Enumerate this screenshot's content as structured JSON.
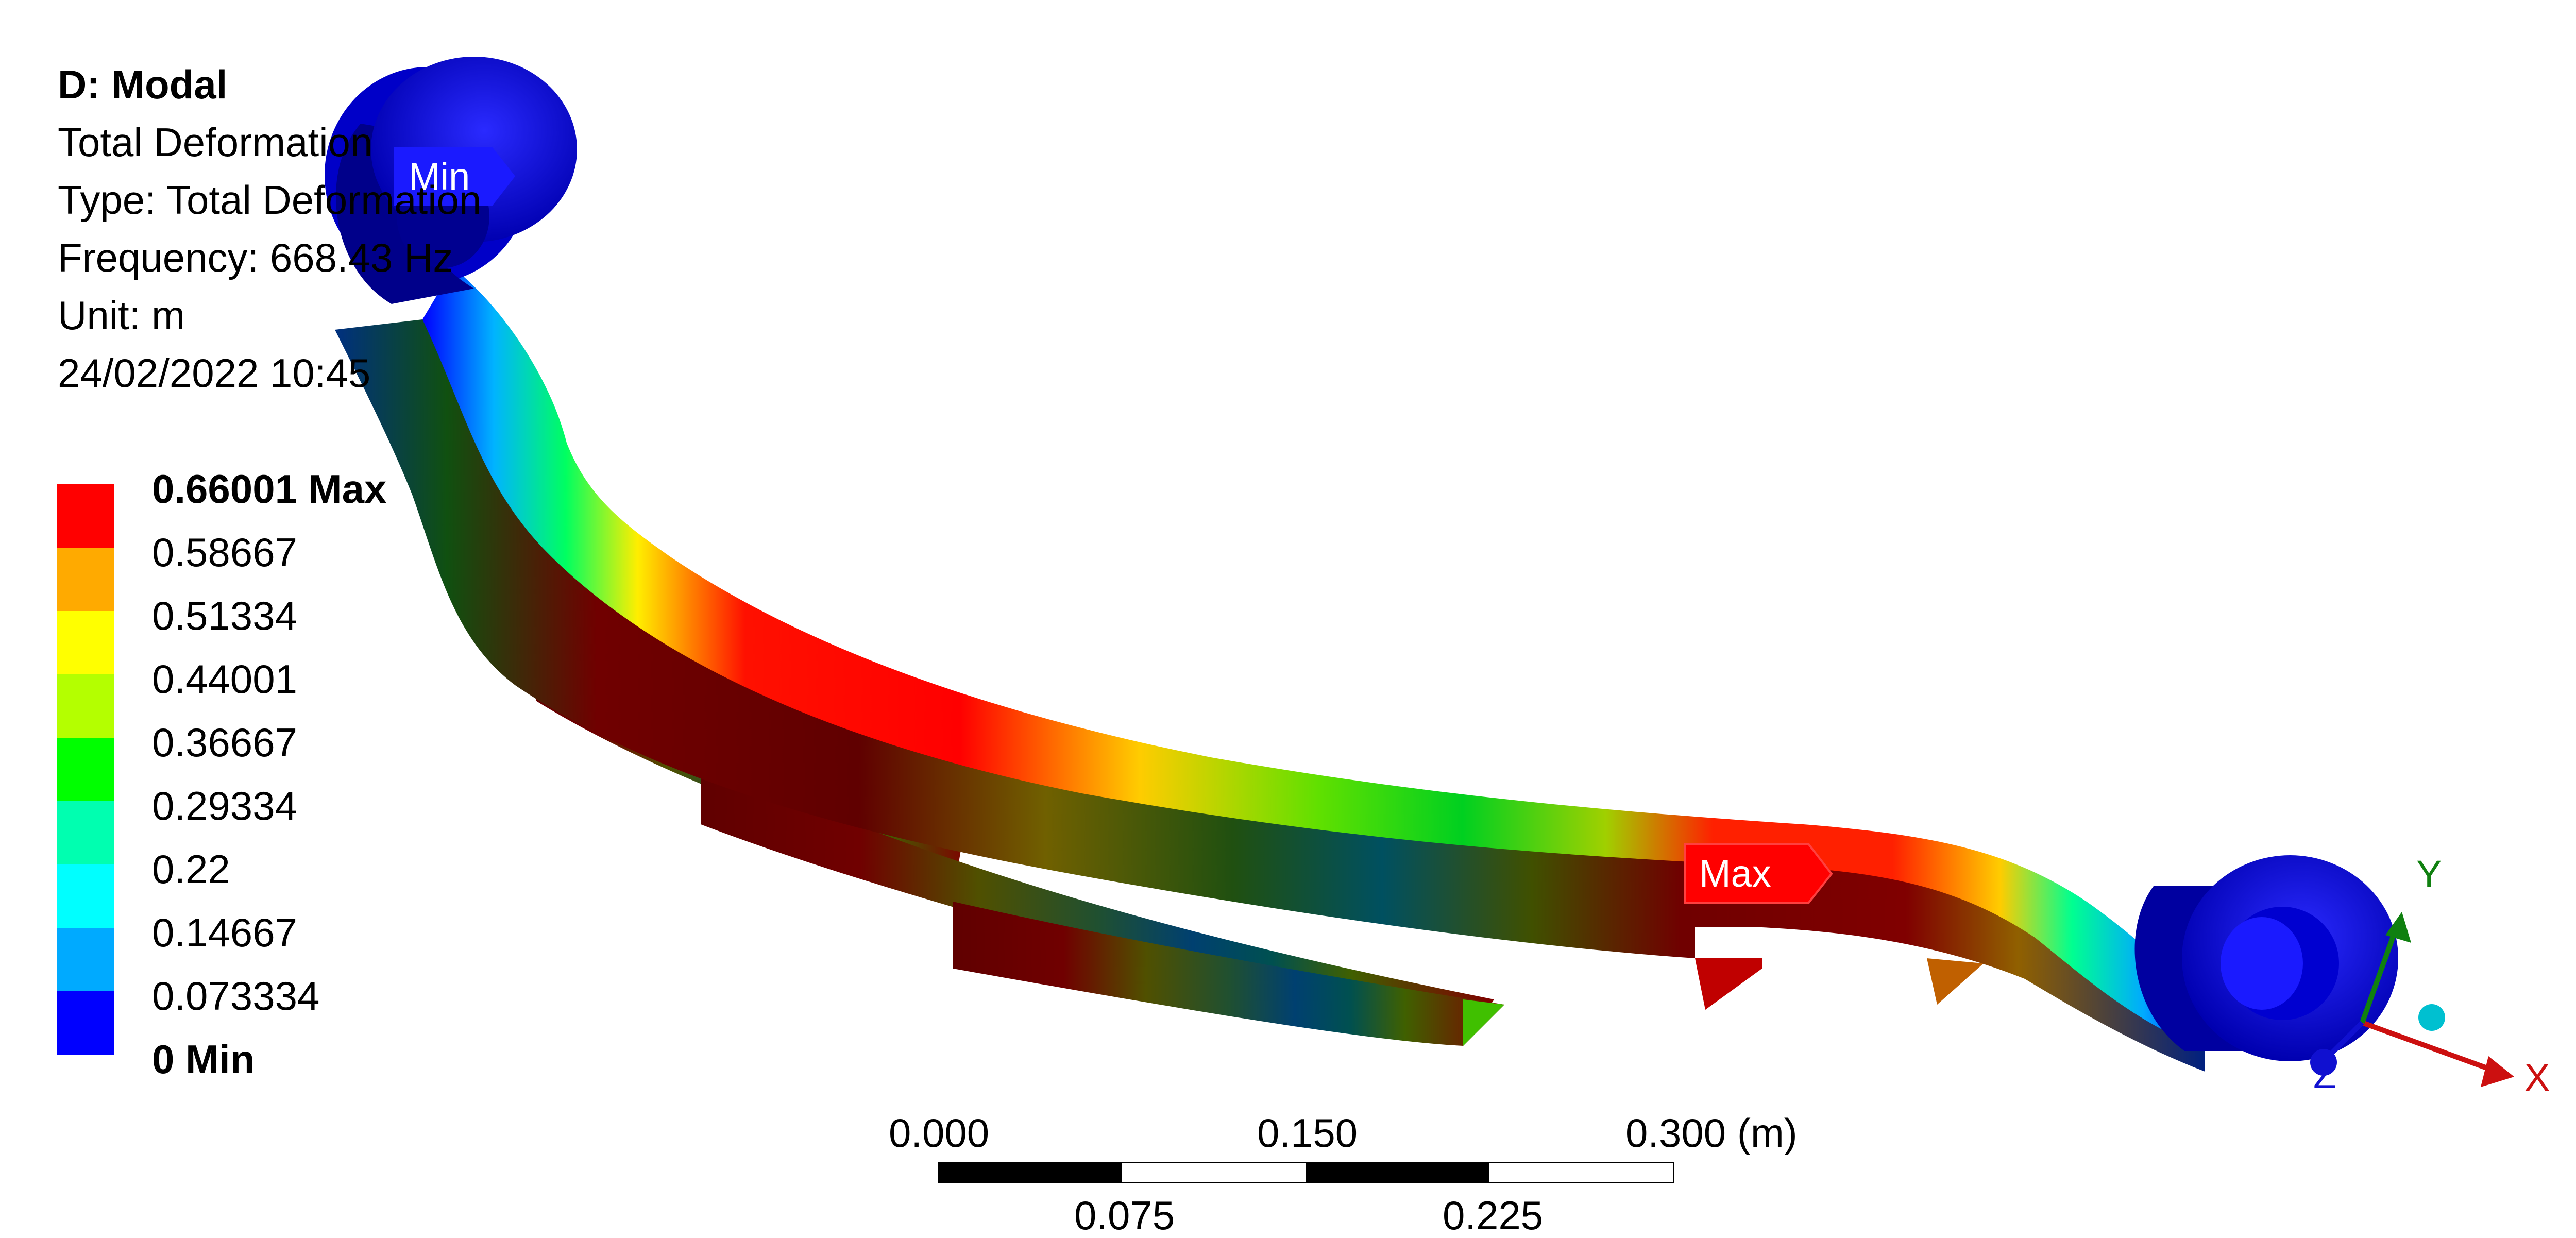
{
  "header": {
    "title": "D: Modal",
    "result_name": "Total Deformation",
    "type_line": "Type: Total Deformation",
    "frequency_line": "Frequency: 668.43 Hz",
    "unit_line": "Unit: m",
    "timestamp": "24/02/2022 10:45"
  },
  "legend": {
    "items": [
      {
        "label": "0.66001 Max",
        "color": "#ff0000",
        "bold": true
      },
      {
        "label": "0.58667",
        "color": "#ffaa00",
        "bold": false
      },
      {
        "label": "0.51334",
        "color": "#ffff00",
        "bold": false
      },
      {
        "label": "0.44001",
        "color": "#b4ff00",
        "bold": false
      },
      {
        "label": "0.36667",
        "color": "#00ff00",
        "bold": false
      },
      {
        "label": "0.29334",
        "color": "#00ffb0",
        "bold": false
      },
      {
        "label": "0.22",
        "color": "#00ffff",
        "bold": false
      },
      {
        "label": "0.14667",
        "color": "#00aaff",
        "bold": false
      },
      {
        "label": "0.073334",
        "color": "#0000ff",
        "bold": false
      },
      {
        "label": "0 Min",
        "color": "",
        "bold": true
      }
    ]
  },
  "probes": {
    "min_label": "Min",
    "max_label": "Max"
  },
  "scale_bar": {
    "top_labels": [
      "0.000",
      "0.150",
      "0.300 (m)"
    ],
    "bottom_labels": [
      "0.075",
      "0.225"
    ]
  },
  "triad": {
    "x": "X",
    "y": "Y",
    "z": "Z"
  },
  "colors": {
    "min_blue": "#0000ff",
    "max_red": "#ff0000",
    "axis_x": "#cc1010",
    "axis_y": "#108010",
    "axis_z": "#1010d0"
  }
}
